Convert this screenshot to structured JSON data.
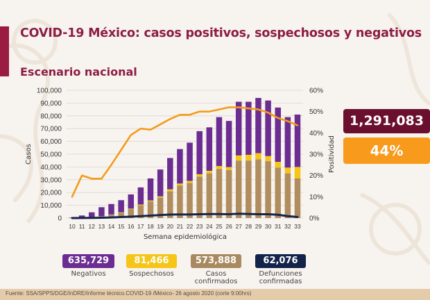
{
  "header": {
    "title": "COVID-19 México: casos positivos, sospechosos y negativos",
    "subtitle": "Escenario nacional"
  },
  "colors": {
    "title": "#8d1d45",
    "negativos": "#6b2d91",
    "sospechosos": "#f5c518",
    "confirmados": "#b08d5e",
    "defunciones": "#14234a",
    "positividad": "#f39c1a",
    "total_badge": "#6b0f2f",
    "pct_badge": "#f89a1c"
  },
  "badges": {
    "total": "1,291,083",
    "positividad": "44%"
  },
  "legend": [
    {
      "value": "635,729",
      "label": "Negativos",
      "label2": "",
      "color": "#6b2d91"
    },
    {
      "value": "81,466",
      "label": "Sospechosos",
      "label2": "",
      "color": "#f5c518"
    },
    {
      "value": "573,888",
      "label": "Casos",
      "label2": "confirmados",
      "color": "#a98a60"
    },
    {
      "value": "62,076",
      "label": "Defunciones",
      "label2": "confirmadas",
      "color": "#14234a"
    }
  ],
  "footer": "Fuente: SSA/SPPS/DGE/InDRE/Informe técnico.COVID-19 /México- 26 agosto 2020 (corte 9:00hrs)",
  "chart_data": {
    "type": "bar",
    "stacked": true,
    "xlabel": "Semana epidemiológica",
    "ylabel": "Casos",
    "y2label": "Positividad",
    "ylim": [
      0,
      100000
    ],
    "y2lim": [
      0,
      60
    ],
    "yticks": [
      "0",
      "10,000",
      "20,000",
      "30,000",
      "40,000",
      "50,000",
      "60,000",
      "70,000",
      "80,000",
      "90,000",
      "100,000"
    ],
    "y2ticks": [
      "0%",
      "10%",
      "20%",
      "30%",
      "40%",
      "50%",
      "60%"
    ],
    "grid": true,
    "categories": [
      "10",
      "11",
      "12",
      "13",
      "14",
      "15",
      "16",
      "17",
      "18",
      "19",
      "20",
      "21",
      "22",
      "23",
      "24",
      "25",
      "26",
      "27",
      "28",
      "29",
      "30",
      "31",
      "32",
      "33"
    ],
    "series": [
      {
        "name": "Casos confirmados",
        "kind": "bar",
        "values": [
          100,
          300,
          700,
          1400,
          2600,
          4200,
          7000,
          10000,
          13000,
          16000,
          21000,
          25500,
          27500,
          32500,
          35000,
          38500,
          37500,
          45000,
          45000,
          46000,
          44500,
          39500,
          35000,
          31000
        ]
      },
      {
        "name": "Sospechosos",
        "kind": "bar",
        "values": [
          0,
          0,
          0,
          100,
          200,
          300,
          400,
          600,
          800,
          1000,
          1500,
          1500,
          1600,
          1800,
          2000,
          2200,
          2400,
          4000,
          4500,
          4800,
          4000,
          4500,
          4500,
          9000
        ]
      },
      {
        "name": "Negativos",
        "kind": "bar",
        "values": [
          300,
          1700,
          3800,
          7000,
          8200,
          9500,
          11100,
          13400,
          17200,
          21000,
          24500,
          27000,
          29900,
          33700,
          34000,
          38300,
          36100,
          42000,
          41500,
          43200,
          43500,
          42500,
          39500,
          41000
        ]
      },
      {
        "name": "Defunciones confirmadas",
        "kind": "line",
        "axis": "left",
        "values": [
          0,
          50,
          150,
          300,
          500,
          800,
          1100,
          1500,
          1900,
          2400,
          2700,
          2800,
          2800,
          3000,
          3100,
          3100,
          3000,
          3400,
          3200,
          3000,
          3000,
          2600,
          1500,
          800
        ]
      },
      {
        "name": "Positividad",
        "kind": "line",
        "axis": "right",
        "unit": "%",
        "values": [
          10,
          20,
          18.5,
          18.5,
          25,
          32,
          39,
          42,
          41.5,
          44,
          46.5,
          48.5,
          48.5,
          50,
          50,
          51,
          52,
          52,
          51.5,
          51,
          49.5,
          47,
          45.5,
          43.5
        ]
      }
    ]
  }
}
